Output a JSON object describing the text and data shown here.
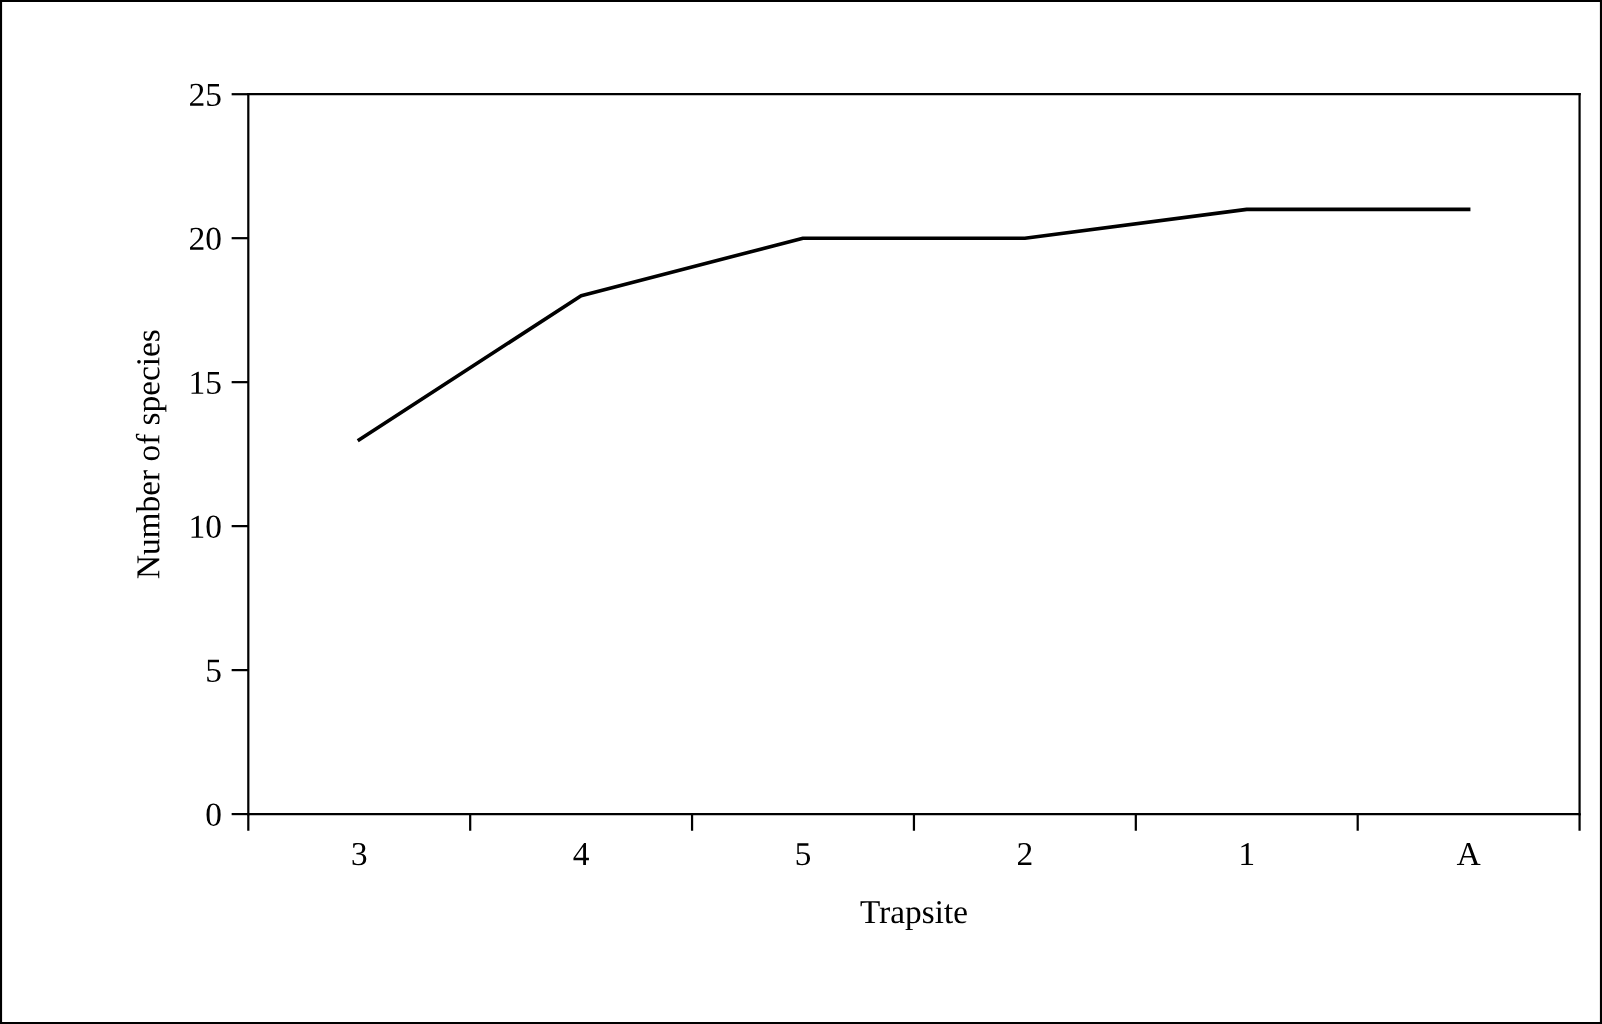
{
  "chart_data": {
    "type": "line",
    "xlabel": "Trapsite",
    "ylabel": "Number of species",
    "categories": [
      "3",
      "4",
      "5",
      "2",
      "1",
      "A"
    ],
    "series": [
      {
        "color": "#000000",
        "values": [
          13,
          18,
          20,
          20,
          21,
          21
        ]
      }
    ],
    "ylim": [
      0,
      25
    ],
    "yticks": [
      0,
      5,
      10,
      15,
      20,
      25
    ],
    "grid": false,
    "legend": false,
    "marker": "none",
    "line_style": "solid"
  }
}
